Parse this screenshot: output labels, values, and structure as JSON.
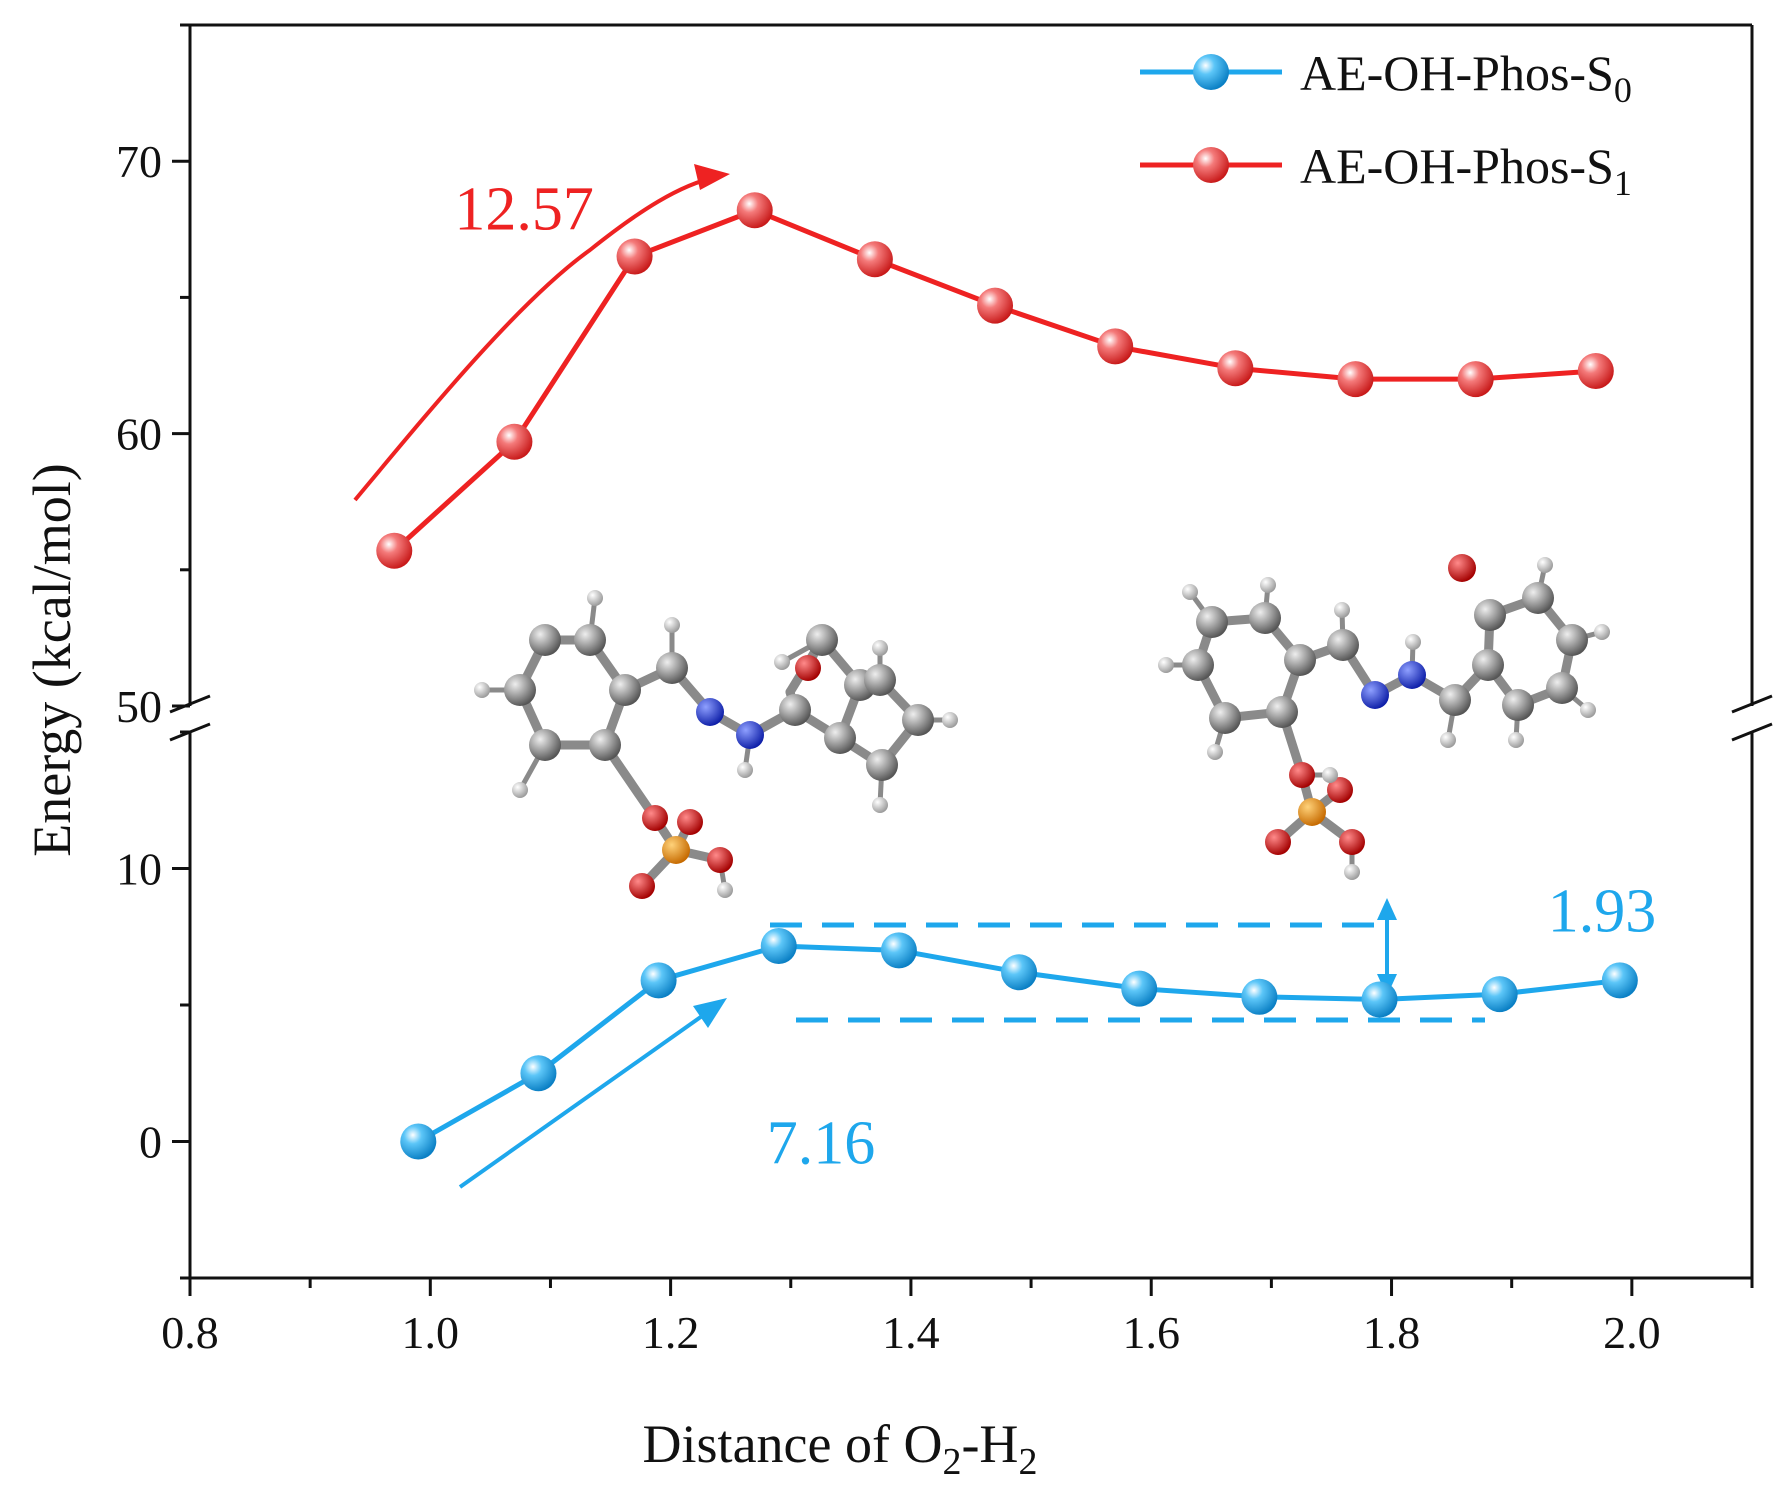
{
  "chart_data": {
    "type": "line",
    "xlabel": "Distance of O",
    "xlabel_sub1": "2",
    "xlabel_mid": "-H",
    "xlabel_sub2": "2",
    "ylabel": "Energy (kcal/mol)",
    "x_ticks": [
      "0.8",
      "1.0",
      "1.2",
      "1.4",
      "1.6",
      "1.8",
      "2.0"
    ],
    "x_tick_values": [
      0.8,
      1.0,
      1.2,
      1.4,
      1.6,
      1.8,
      2.0
    ],
    "xlim": [
      0.8,
      2.1
    ],
    "y_ticks_lower": [
      "0",
      "10"
    ],
    "y_tick_values_lower": [
      0,
      10
    ],
    "y_ticks_upper": [
      "50",
      "60",
      "70"
    ],
    "y_tick_values_upper": [
      50,
      60,
      70
    ],
    "ylim_lower": [
      -5,
      15
    ],
    "ylim_upper": [
      50,
      75
    ],
    "axis_break": "between 15 and 50",
    "legend_position": "top-right",
    "series": [
      {
        "name": "AE-OH-Phos-S",
        "subscript": "0",
        "color": "#1ea7ec",
        "x": [
          0.99,
          1.09,
          1.19,
          1.29,
          1.39,
          1.49,
          1.59,
          1.69,
          1.79,
          1.89,
          1.99
        ],
        "y": [
          0.0,
          2.5,
          5.9,
          7.16,
          7.0,
          6.2,
          5.6,
          5.3,
          5.2,
          5.4,
          5.9
        ]
      },
      {
        "name": "AE-OH-Phos-S",
        "subscript": "1",
        "color": "#ee2222",
        "x": [
          0.97,
          1.07,
          1.17,
          1.27,
          1.37,
          1.47,
          1.57,
          1.67,
          1.77,
          1.87,
          1.97
        ],
        "y": [
          55.7,
          59.7,
          66.5,
          68.2,
          66.4,
          64.7,
          63.2,
          62.4,
          62.0,
          62.0,
          62.3
        ]
      }
    ],
    "annotations": [
      {
        "text": "12.57",
        "color": "#ee2222",
        "x": 1.02,
        "y": 67.5
      },
      {
        "text": "7.16",
        "color": "#1ea7ec",
        "x": 1.28,
        "y": -0.8
      },
      {
        "text": "1.93",
        "color": "#1ea7ec",
        "x": 1.93,
        "y": 7.7
      }
    ]
  }
}
